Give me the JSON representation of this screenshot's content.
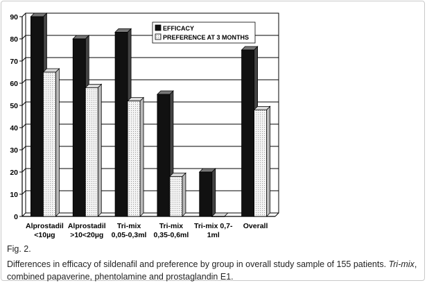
{
  "chart_data": {
    "type": "bar",
    "categories": [
      [
        "Alprostadil",
        "<10µg"
      ],
      [
        "Alprostadil",
        ">10<20µg"
      ],
      [
        "Tri-mix",
        "0,05-0,3ml"
      ],
      [
        "Tri-mix",
        "0,35-0,6ml"
      ],
      [
        "Tri-mix 0,7-",
        "1ml"
      ],
      [
        "Overall"
      ]
    ],
    "series": [
      {
        "name": "EFFICACY",
        "values": [
          90,
          80,
          83,
          55,
          20,
          75
        ],
        "color": "#111111"
      },
      {
        "name": "PREFERENCE AT 3 MONTHS",
        "values": [
          65,
          58,
          52,
          18,
          0,
          48
        ],
        "color": "#ededed"
      }
    ],
    "ylim": [
      0,
      90
    ],
    "yticks": [
      0,
      10,
      20,
      30,
      40,
      50,
      60,
      70,
      80,
      90
    ],
    "grid": true,
    "legend": "top-center",
    "style": "3d-bars"
  },
  "caption": {
    "fig_label": "Fig. 2.",
    "text_before_italic": "Differences in efficacy of sildenafil and preference by group in overall study sample of 155 patients. ",
    "italic_term": "Tri-mix",
    "text_after_italic": ", combined papaverine, phentolamine and prostaglandin E1."
  }
}
